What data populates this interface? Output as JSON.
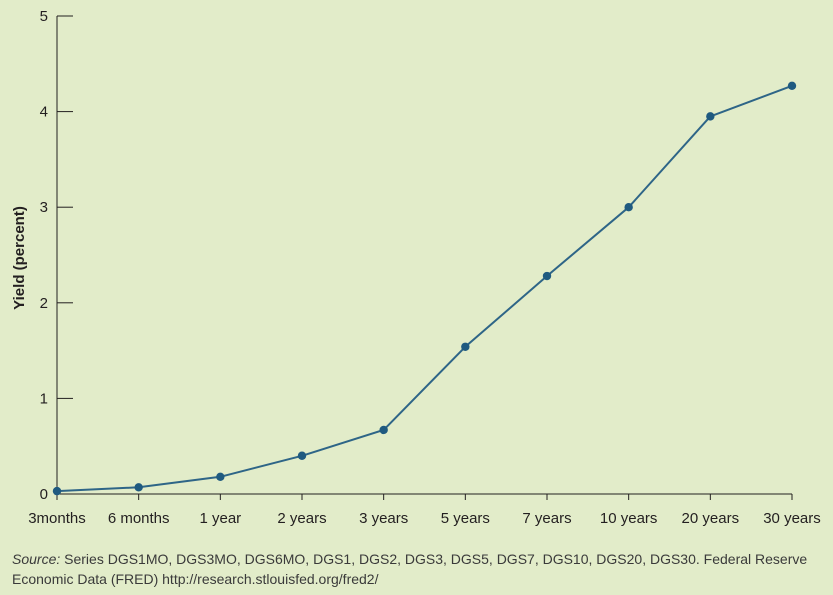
{
  "chart_data": {
    "type": "line",
    "categories": [
      "3months",
      "6 months",
      "1 year",
      "2 years",
      "3 years",
      "5 years",
      "7 years",
      "10 years",
      "20 years",
      "30 years"
    ],
    "series": [
      {
        "values": [
          0.03,
          0.07,
          0.18,
          0.4,
          0.67,
          1.54,
          2.28,
          3.0,
          3.95,
          4.27
        ]
      }
    ],
    "title": "",
    "xlabel": "",
    "ylabel": "Yield (percent)",
    "ylim": [
      0,
      5
    ],
    "yticks": [
      0,
      1,
      2,
      3,
      4,
      5
    ],
    "grid": false,
    "colors": {
      "line": "#2e6587",
      "marker": "#1f5a80",
      "axis": "#231f20",
      "background": "#e2ecc9"
    }
  },
  "source": {
    "prefix": "Source:",
    "text": " Series DGS1MO, DGS3MO, DGS6MO, DGS1, DGS2, DGS3, DGS5, DGS7, DGS10, DGS20, DGS30. Federal Reserve Economic Data (FRED) http://research.stlouisfed.org/fred2/"
  }
}
